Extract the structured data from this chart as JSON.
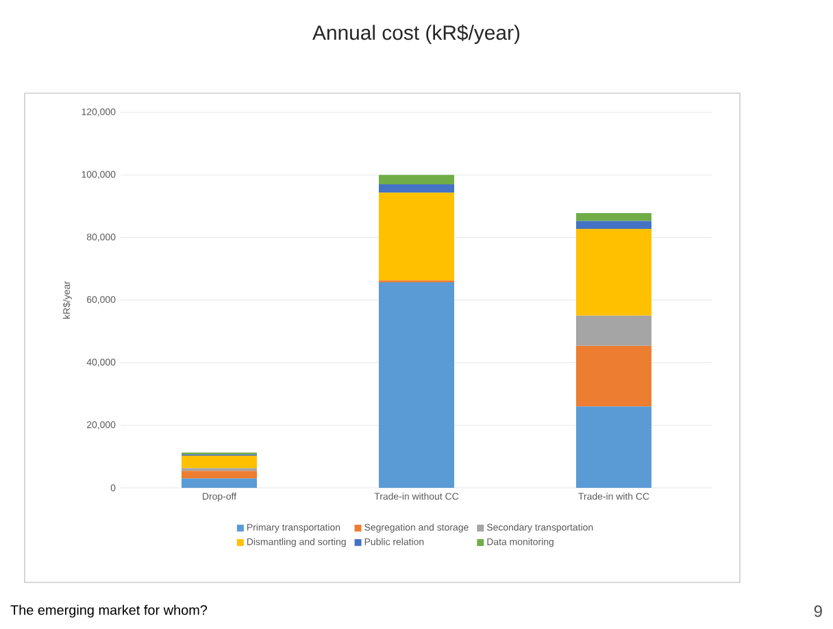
{
  "chart_data": {
    "type": "bar",
    "title": "Annual cost (kR$/year)",
    "ylabel": "kR$/year",
    "categories": [
      "Drop-off",
      "Trade-in without CC",
      "Trade-in with CC"
    ],
    "stacked": true,
    "series": [
      {
        "name": "Primary transportation",
        "color": "#5b9bd5",
        "values": [
          3000,
          65700,
          26000
        ]
      },
      {
        "name": "Segregation and storage",
        "color": "#ed7d31",
        "values": [
          2400,
          600,
          19400
        ]
      },
      {
        "name": "Secondary transportation",
        "color": "#a5a5a5",
        "values": [
          900,
          0,
          9600
        ]
      },
      {
        "name": "Dismantling and sorting",
        "color": "#ffc000",
        "values": [
          4000,
          28000,
          27800
        ]
      },
      {
        "name": "Public relation",
        "color": "#4472c4",
        "values": [
          400,
          2700,
          2500
        ]
      },
      {
        "name": "Data monitoring",
        "color": "#70ad47",
        "values": [
          600,
          3000,
          2500
        ]
      }
    ],
    "ylim": [
      0,
      120000
    ],
    "yticks": [
      0,
      {
        "value": 20000,
        "label": "20,000"
      },
      {
        "value": 40000,
        "label": "40,000"
      },
      {
        "value": 60000,
        "label": "60,000"
      },
      {
        "value": 80000,
        "label": "80,000"
      },
      {
        "value": 100000,
        "label": "100,000"
      },
      {
        "value": 120000,
        "label": "120,000"
      }
    ],
    "grid": "y",
    "legend": "bottom",
    "annotations": [
      "The emerging market for whom?",
      "9"
    ]
  }
}
